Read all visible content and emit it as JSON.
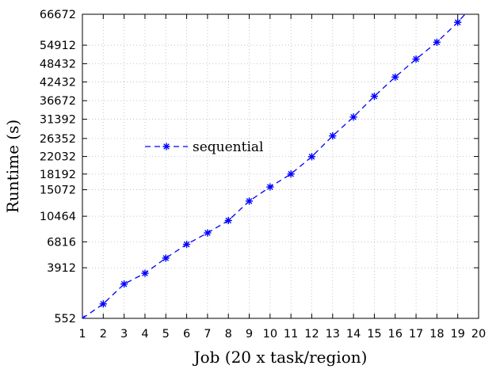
{
  "chart_data": {
    "type": "line",
    "xlabel": "Job (20 x task/region)",
    "ylabel": "Runtime (s)",
    "x": [
      1,
      2,
      3,
      4,
      5,
      6,
      7,
      8,
      9,
      10,
      11,
      12,
      13,
      14,
      15,
      16,
      17,
      18,
      19,
      20
    ],
    "xlim": [
      1,
      20
    ],
    "ylim": [
      552,
      66672
    ],
    "yticks": [
      552,
      3912,
      6816,
      10464,
      15072,
      18192,
      22032,
      26352,
      31392,
      36672,
      42432,
      48432,
      54912,
      66672
    ],
    "grid": true,
    "legend_position": "left-middle",
    "series": [
      {
        "name": "sequential",
        "color": "#0000ff",
        "marker": "asterisk",
        "line_style": "dashed",
        "values": [
          552,
          1200,
          2500,
          3400,
          4900,
          6500,
          8000,
          9800,
          13000,
          15600,
          18200,
          22000,
          27000,
          32000,
          38000,
          44000,
          50000,
          56000,
          63500,
          72800
        ]
      }
    ]
  }
}
